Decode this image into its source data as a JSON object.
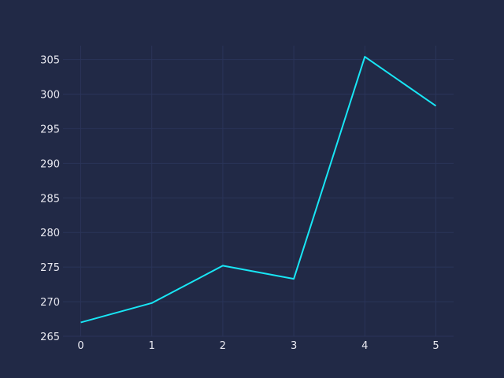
{
  "chart_data": {
    "type": "line",
    "title": "",
    "xlabel": "",
    "ylabel": "",
    "x": [
      0,
      1,
      2,
      3,
      4,
      5
    ],
    "series": [
      {
        "values": [
          267.0,
          269.8,
          275.2,
          273.3,
          305.4,
          298.3
        ]
      }
    ],
    "xlim": [
      -0.25,
      5.25
    ],
    "ylim": [
      265,
      307
    ],
    "x_ticks": [
      "0",
      "1",
      "2",
      "3",
      "4",
      "5"
    ],
    "y_ticks": [
      "265",
      "270",
      "275",
      "280",
      "285",
      "290",
      "295",
      "300",
      "305"
    ],
    "grid": true,
    "colors": {
      "background": "#212946",
      "grid": "#2A3459",
      "line": "#18E6F5",
      "tick_text": "#E8E8F0"
    }
  }
}
